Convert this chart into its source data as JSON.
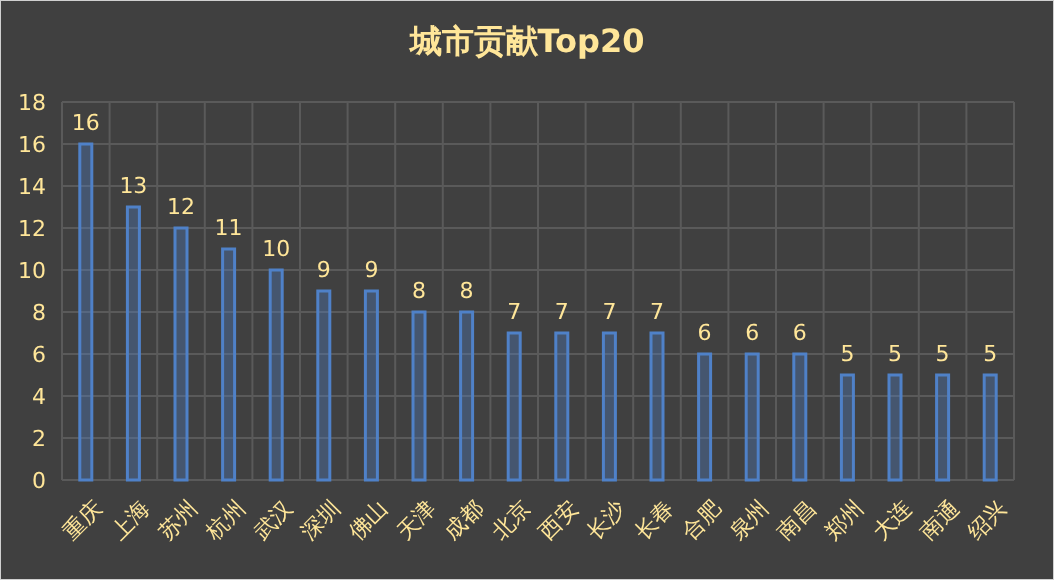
{
  "chart_data": {
    "type": "bar",
    "title": "城市贡献Top20",
    "categories": [
      "重庆",
      "上海",
      "苏州",
      "杭州",
      "武汉",
      "深圳",
      "佛山",
      "天津",
      "成都",
      "北京",
      "西安",
      "长沙",
      "长春",
      "合肥",
      "泉州",
      "南昌",
      "郑州",
      "大连",
      "南通",
      "绍兴"
    ],
    "values": [
      16,
      13,
      12,
      11,
      10,
      9,
      9,
      8,
      8,
      7,
      7,
      7,
      7,
      6,
      6,
      6,
      5,
      5,
      5,
      5
    ],
    "color": "#4f81c8",
    "ylim": [
      0,
      18
    ],
    "yticks": [
      0,
      2,
      4,
      6,
      8,
      10,
      12,
      14,
      16,
      18
    ],
    "grid": true,
    "data_labels": true
  }
}
